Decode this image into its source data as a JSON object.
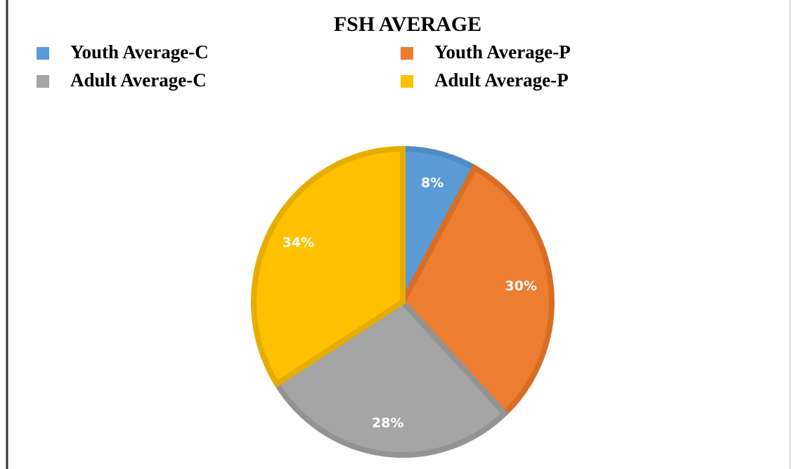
{
  "chart_data": {
    "type": "pie",
    "title": "FSH  AVERAGE",
    "categories": [
      "Youth Average-C",
      "Youth Average-P",
      "Adult Average-C",
      "Adult Average-P"
    ],
    "values": [
      8,
      30,
      28,
      34
    ],
    "value_labels": [
      "8%",
      "30%",
      "28%",
      "34%"
    ],
    "colors": [
      "#5b9bd5",
      "#ed7d31",
      "#a5a5a5",
      "#ffc000"
    ],
    "border_colors": [
      "#4f8bc4",
      "#d86d25",
      "#939393",
      "#e6ad00"
    ]
  }
}
